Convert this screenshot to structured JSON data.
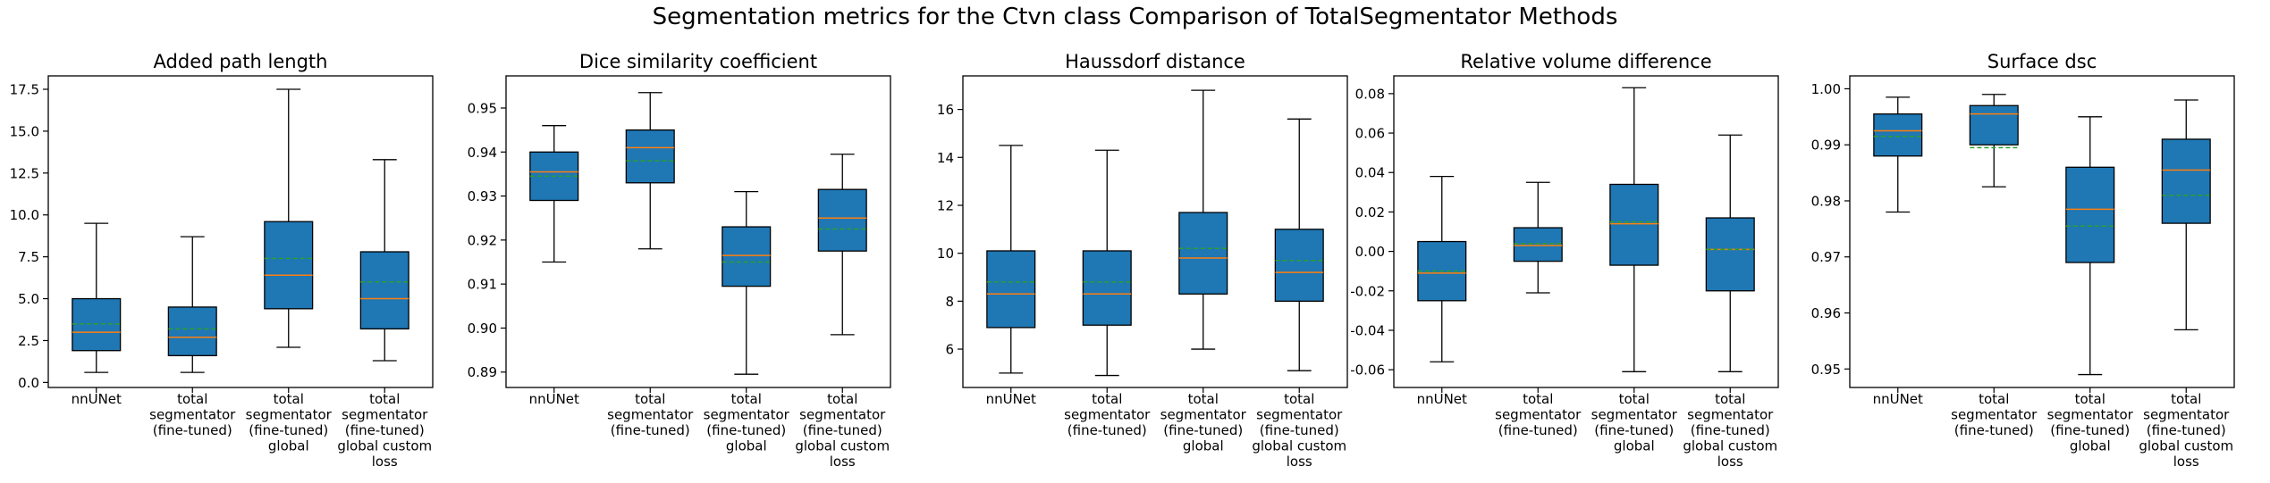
{
  "figure": {
    "title": "Segmentation metrics for the Ctvn class Comparison of TotalSegmentator Methods"
  },
  "style": {
    "box_fill": "#1f77b4",
    "median_color": "#ff7f0e",
    "mean_color": "#2ca02c",
    "line_color": "#000000"
  },
  "chart_data": [
    {
      "type": "box",
      "title": "Added path length",
      "categories": [
        [
          "nnUNet"
        ],
        [
          "total",
          "segmentator",
          "(fine-tuned)"
        ],
        [
          "total",
          "segmentator",
          "(fine-tuned)",
          "global"
        ],
        [
          "total",
          "segmentator",
          "(fine-tuned)",
          "global custom",
          "loss"
        ]
      ],
      "ylim": [
        -0.3,
        18.3
      ],
      "yticks": [
        0.0,
        2.5,
        5.0,
        7.5,
        10.0,
        12.5,
        15.0,
        17.5
      ],
      "tick_decimals": 1,
      "boxes": [
        {
          "whislo": 0.6,
          "q1": 1.9,
          "med": 3.0,
          "mean": 3.5,
          "q3": 5.0,
          "whishi": 9.5
        },
        {
          "whislo": 0.6,
          "q1": 1.6,
          "med": 2.7,
          "mean": 3.2,
          "q3": 4.5,
          "whishi": 8.7
        },
        {
          "whislo": 2.1,
          "q1": 4.4,
          "med": 6.4,
          "mean": 7.4,
          "q3": 9.6,
          "whishi": 17.5
        },
        {
          "whislo": 1.3,
          "q1": 3.2,
          "med": 5.0,
          "mean": 6.0,
          "q3": 7.8,
          "whishi": 13.3
        }
      ]
    },
    {
      "type": "box",
      "title": "Dice similarity coefficient",
      "categories": [
        [
          "nnUNet"
        ],
        [
          "total",
          "segmentator",
          "(fine-tuned)"
        ],
        [
          "total",
          "segmentator",
          "(fine-tuned)",
          "global"
        ],
        [
          "total",
          "segmentator",
          "(fine-tuned)",
          "global custom",
          "loss"
        ]
      ],
      "ylim": [
        0.8865,
        0.9573
      ],
      "yticks": [
        0.89,
        0.9,
        0.91,
        0.92,
        0.93,
        0.94,
        0.95
      ],
      "tick_decimals": 2,
      "boxes": [
        {
          "whislo": 0.915,
          "q1": 0.929,
          "med": 0.9355,
          "mean": 0.9345,
          "q3": 0.94,
          "whishi": 0.946
        },
        {
          "whislo": 0.918,
          "q1": 0.933,
          "med": 0.941,
          "mean": 0.938,
          "q3": 0.945,
          "whishi": 0.9535
        },
        {
          "whislo": 0.8895,
          "q1": 0.9095,
          "med": 0.9165,
          "mean": 0.915,
          "q3": 0.923,
          "whishi": 0.931
        },
        {
          "whislo": 0.8985,
          "q1": 0.9175,
          "med": 0.925,
          "mean": 0.9225,
          "q3": 0.9315,
          "whishi": 0.9395
        }
      ]
    },
    {
      "type": "box",
      "title": "Haussdorf distance",
      "categories": [
        [
          "nnUNet"
        ],
        [
          "total",
          "segmentator",
          "(fine-tuned)"
        ],
        [
          "total",
          "segmentator",
          "(fine-tuned)",
          "global"
        ],
        [
          "total",
          "segmentator",
          "(fine-tuned)",
          "global custom",
          "loss"
        ]
      ],
      "ylim": [
        4.4,
        17.4
      ],
      "yticks": [
        6,
        8,
        10,
        12,
        14,
        16
      ],
      "tick_decimals": 0,
      "boxes": [
        {
          "whislo": 5.0,
          "q1": 6.9,
          "med": 8.3,
          "mean": 8.8,
          "q3": 10.1,
          "whishi": 14.5
        },
        {
          "whislo": 4.9,
          "q1": 7.0,
          "med": 8.3,
          "mean": 8.8,
          "q3": 10.1,
          "whishi": 14.3
        },
        {
          "whislo": 6.0,
          "q1": 8.3,
          "med": 9.8,
          "mean": 10.2,
          "q3": 11.7,
          "whishi": 16.8
        },
        {
          "whislo": 5.1,
          "q1": 8.0,
          "med": 9.2,
          "mean": 9.7,
          "q3": 11.0,
          "whishi": 15.6
        }
      ]
    },
    {
      "type": "box",
      "title": "Relative volume difference",
      "categories": [
        [
          "nnUNet"
        ],
        [
          "total",
          "segmentator",
          "(fine-tuned)"
        ],
        [
          "total",
          "segmentator",
          "(fine-tuned)",
          "global"
        ],
        [
          "total",
          "segmentator",
          "(fine-tuned)",
          "global custom",
          "loss"
        ]
      ],
      "ylim": [
        -0.069,
        0.089
      ],
      "yticks": [
        -0.06,
        -0.04,
        -0.02,
        0.0,
        0.02,
        0.04,
        0.06,
        0.08
      ],
      "tick_decimals": 2,
      "boxes": [
        {
          "whislo": -0.056,
          "q1": -0.025,
          "med": -0.011,
          "mean": -0.01,
          "q3": 0.005,
          "whishi": 0.038
        },
        {
          "whislo": -0.021,
          "q1": -0.005,
          "med": 0.003,
          "mean": 0.004,
          "q3": 0.012,
          "whishi": 0.035
        },
        {
          "whislo": -0.061,
          "q1": -0.007,
          "med": 0.014,
          "mean": 0.015,
          "q3": 0.034,
          "whishi": 0.083
        },
        {
          "whislo": -0.061,
          "q1": -0.02,
          "med": 0.001,
          "mean": 0.001,
          "q3": 0.017,
          "whishi": 0.059
        }
      ]
    },
    {
      "type": "box",
      "title": "Surface dsc",
      "categories": [
        [
          "nnUNet"
        ],
        [
          "total",
          "segmentator",
          "(fine-tuned)"
        ],
        [
          "total",
          "segmentator",
          "(fine-tuned)",
          "global"
        ],
        [
          "total",
          "segmentator",
          "(fine-tuned)",
          "global custom",
          "loss"
        ]
      ],
      "ylim": [
        0.9467,
        1.0023
      ],
      "yticks": [
        0.95,
        0.96,
        0.97,
        0.98,
        0.99,
        1.0
      ],
      "tick_decimals": 2,
      "boxes": [
        {
          "whislo": 0.978,
          "q1": 0.988,
          "med": 0.9925,
          "mean": 0.9915,
          "q3": 0.9955,
          "whishi": 0.9985
        },
        {
          "whislo": 0.9825,
          "q1": 0.99,
          "med": 0.9955,
          "mean": 0.9895,
          "q3": 0.997,
          "whishi": 0.999
        },
        {
          "whislo": 0.949,
          "q1": 0.969,
          "med": 0.9785,
          "mean": 0.9755,
          "q3": 0.986,
          "whishi": 0.995
        },
        {
          "whislo": 0.957,
          "q1": 0.976,
          "med": 0.9855,
          "mean": 0.981,
          "q3": 0.991,
          "whishi": 0.998
        }
      ]
    }
  ]
}
